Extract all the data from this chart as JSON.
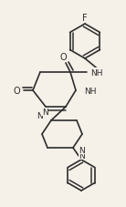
{
  "bg_color": "#f5f0e8",
  "line_color": "#2d2d2d",
  "line_width": 1.2,
  "font_size": 6.5,
  "figsize": [
    1.38,
    2.28
  ],
  "dpi": 100,
  "xlim": [
    0,
    138
  ],
  "ylim": [
    0,
    228
  ]
}
